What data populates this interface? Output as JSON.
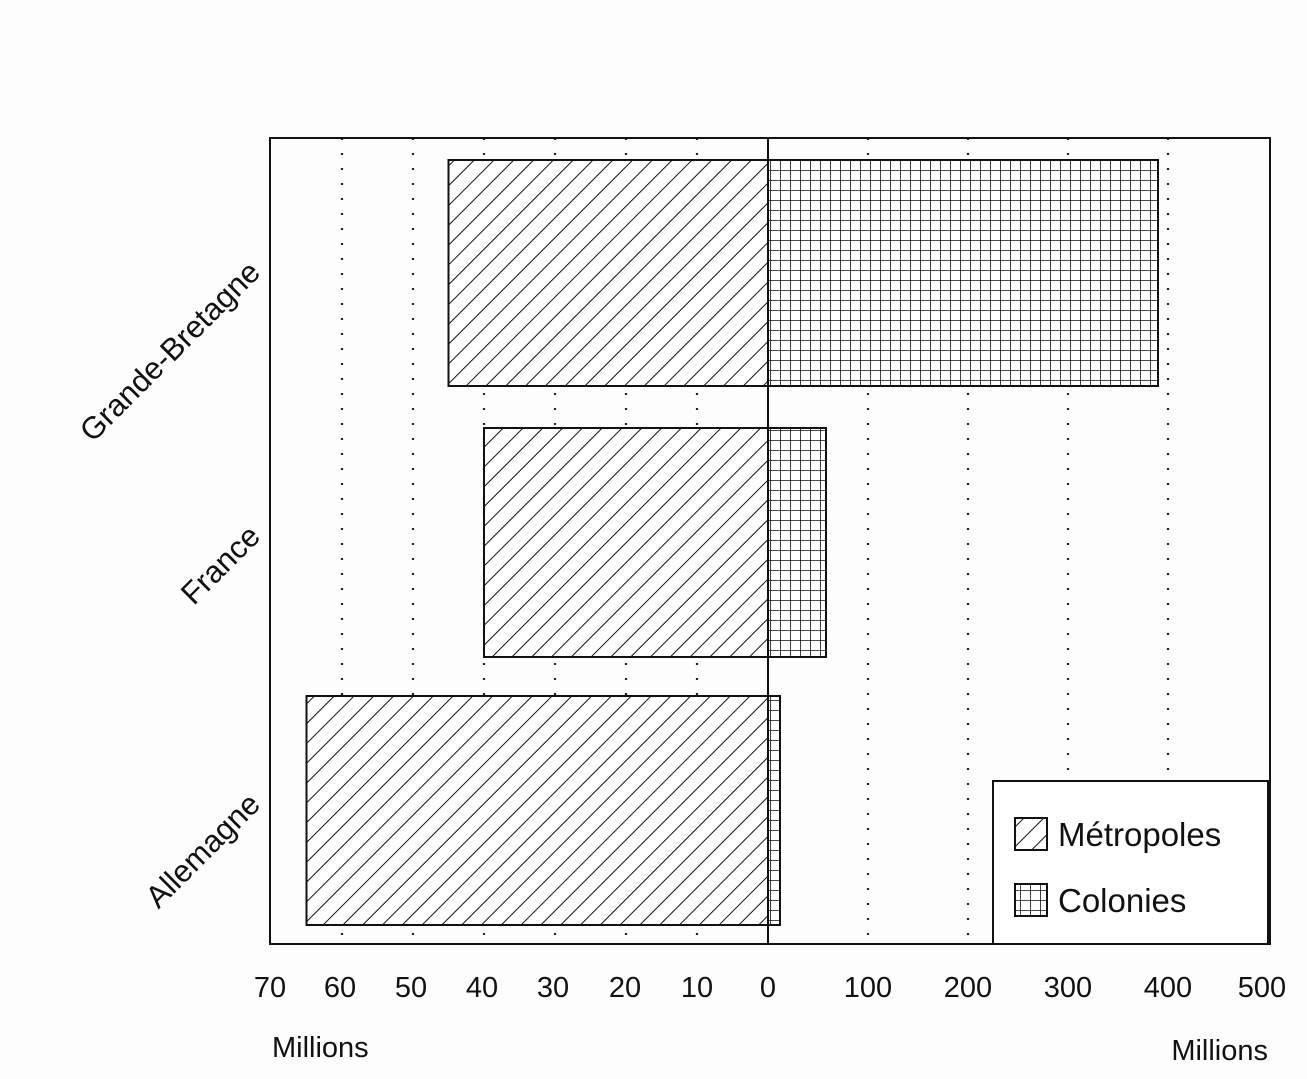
{
  "chart_data": {
    "type": "bar",
    "orientation": "horizontal",
    "layout": "two-sided (left: Métropoles, right: Colonies)",
    "title": "",
    "categories": [
      "Grande-Bretagne",
      "France",
      "Allemagne"
    ],
    "series": [
      {
        "name": "Métropoles",
        "side": "left",
        "pattern": "diagonal-hatch",
        "values": [
          45,
          40,
          65
        ]
      },
      {
        "name": "Colonies",
        "side": "right",
        "pattern": "grid-hatch",
        "values": [
          390,
          58,
          12
        ]
      }
    ],
    "left_axis": {
      "unit_label": "Millions",
      "range": [
        70,
        0
      ],
      "ticks": [
        "70",
        "60",
        "50",
        "40",
        "30",
        "20",
        "10",
        "0"
      ]
    },
    "right_axis": {
      "unit_label": "Millions",
      "range": [
        0,
        500
      ],
      "ticks": [
        "0",
        "100",
        "200",
        "300",
        "400",
        "500"
      ]
    },
    "grid": "vertical dotted",
    "legend": {
      "position": "bottom-right",
      "entries": [
        "Métropoles",
        "Colonies"
      ]
    }
  }
}
